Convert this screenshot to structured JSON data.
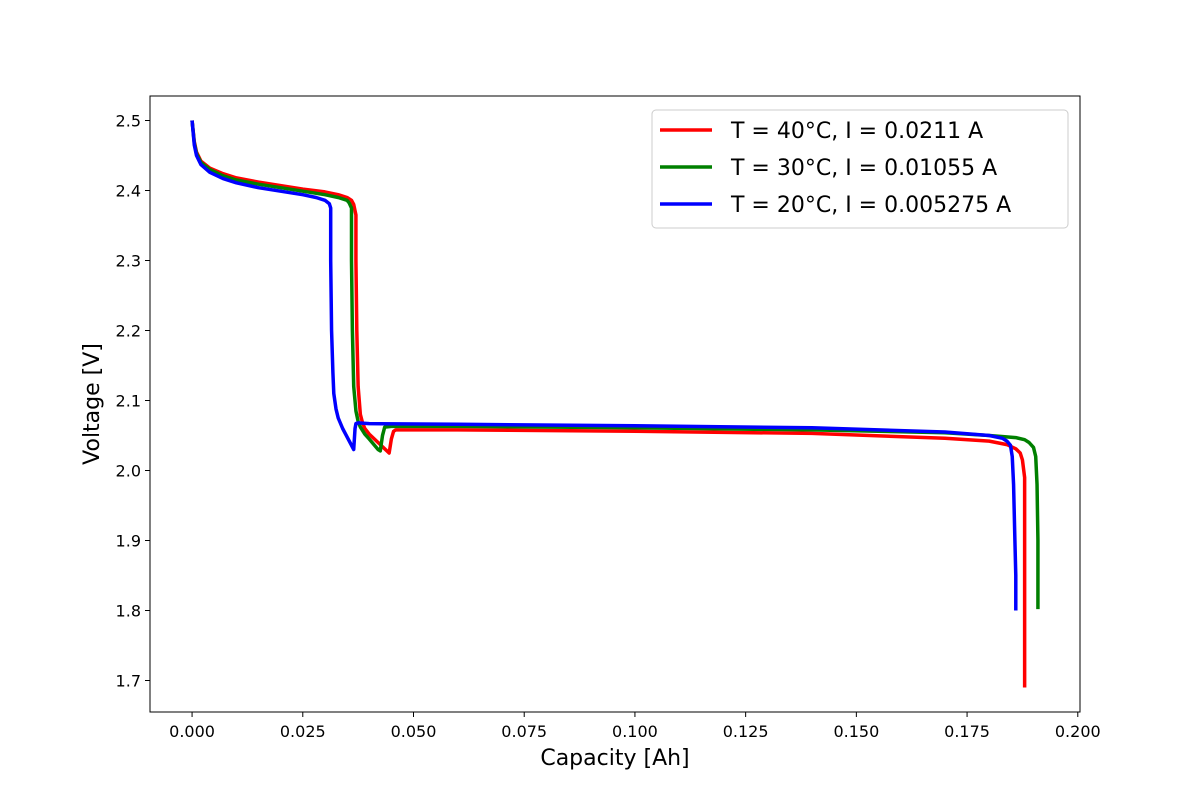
{
  "chart_data": {
    "type": "line",
    "title": "",
    "xlabel": "Capacity [Ah]",
    "ylabel": "Voltage [V]",
    "xlim": [
      -0.0095,
      0.2005
    ],
    "ylim": [
      1.655,
      2.535
    ],
    "xticks": [
      0.0,
      0.025,
      0.05,
      0.075,
      0.1,
      0.125,
      0.15,
      0.175,
      0.2
    ],
    "xtick_labels": [
      "0.000",
      "0.025",
      "0.050",
      "0.075",
      "0.100",
      "0.125",
      "0.150",
      "0.175",
      "0.200"
    ],
    "yticks": [
      1.7,
      1.8,
      1.9,
      2.0,
      2.1,
      2.2,
      2.3,
      2.4,
      2.5
    ],
    "ytick_labels": [
      "1.7",
      "1.8",
      "1.9",
      "2.0",
      "2.1",
      "2.2",
      "2.3",
      "2.4",
      "2.5"
    ],
    "grid": false,
    "legend_position": "upper-right",
    "series": [
      {
        "name": "T = 40$^\\circ$C, I = 0.0211 A",
        "label_display": "T = 40°C, I = 0.0211 A",
        "color": "#ff0000",
        "x": [
          0.0,
          0.0005,
          0.001,
          0.002,
          0.004,
          0.007,
          0.01,
          0.015,
          0.02,
          0.025,
          0.03,
          0.033,
          0.035,
          0.036,
          0.0365,
          0.037,
          0.037,
          0.0372,
          0.0375,
          0.038,
          0.0385,
          0.039,
          0.04,
          0.042,
          0.0445,
          0.045,
          0.0455,
          0.046,
          0.048,
          0.06,
          0.1,
          0.14,
          0.17,
          0.18,
          0.184,
          0.186,
          0.187,
          0.1875,
          0.188,
          0.188,
          0.188
        ],
        "y": [
          2.5,
          2.47,
          2.455,
          2.442,
          2.432,
          2.424,
          2.418,
          2.412,
          2.407,
          2.402,
          2.398,
          2.394,
          2.39,
          2.386,
          2.38,
          2.365,
          2.3,
          2.2,
          2.12,
          2.08,
          2.068,
          2.06,
          2.052,
          2.04,
          2.025,
          2.045,
          2.056,
          2.058,
          2.058,
          2.058,
          2.056,
          2.053,
          2.046,
          2.042,
          2.037,
          2.031,
          2.025,
          2.015,
          1.99,
          1.85,
          1.69
        ]
      },
      {
        "name": "T = 30$^\\circ$C, I = 0.01055 A",
        "label_display": "T = 30°C, I = 0.01055 A",
        "color": "#008000",
        "x": [
          0.0,
          0.0005,
          0.001,
          0.002,
          0.004,
          0.007,
          0.01,
          0.015,
          0.02,
          0.025,
          0.03,
          0.033,
          0.035,
          0.0355,
          0.036,
          0.036,
          0.0362,
          0.0365,
          0.037,
          0.0375,
          0.038,
          0.039,
          0.04,
          0.042,
          0.0425,
          0.043,
          0.0435,
          0.045,
          0.06,
          0.1,
          0.14,
          0.17,
          0.18,
          0.186,
          0.188,
          0.189,
          0.19,
          0.1905,
          0.1908,
          0.191,
          0.191
        ],
        "y": [
          2.5,
          2.468,
          2.453,
          2.44,
          2.43,
          2.421,
          2.415,
          2.409,
          2.404,
          2.399,
          2.394,
          2.39,
          2.386,
          2.382,
          2.375,
          2.3,
          2.2,
          2.12,
          2.085,
          2.07,
          2.062,
          2.052,
          2.045,
          2.03,
          2.028,
          2.05,
          2.062,
          2.063,
          2.063,
          2.061,
          2.058,
          2.054,
          2.05,
          2.047,
          2.044,
          2.04,
          2.033,
          2.02,
          1.98,
          1.9,
          1.802
        ]
      },
      {
        "name": "T = 20$^\\circ$C, I = 0.005275 A",
        "label_display": "T = 20°C, I = 0.005275 A",
        "color": "#0000ff",
        "x": [
          0.0,
          0.0005,
          0.001,
          0.002,
          0.004,
          0.007,
          0.01,
          0.015,
          0.02,
          0.025,
          0.028,
          0.03,
          0.031,
          0.0313,
          0.0313,
          0.0315,
          0.0318,
          0.032,
          0.0325,
          0.033,
          0.034,
          0.035,
          0.0365,
          0.0368,
          0.037,
          0.0375,
          0.04,
          0.06,
          0.1,
          0.14,
          0.17,
          0.18,
          0.183,
          0.184,
          0.1848,
          0.1852,
          0.1855,
          0.1858,
          0.186,
          0.186
        ],
        "y": [
          2.5,
          2.465,
          2.45,
          2.437,
          2.426,
          2.417,
          2.411,
          2.404,
          2.399,
          2.394,
          2.39,
          2.386,
          2.381,
          2.375,
          2.3,
          2.2,
          2.14,
          2.11,
          2.088,
          2.075,
          2.06,
          2.048,
          2.03,
          2.06,
          2.067,
          2.068,
          2.067,
          2.066,
          2.064,
          2.061,
          2.055,
          2.05,
          2.046,
          2.042,
          2.036,
          2.02,
          1.98,
          1.9,
          1.85,
          1.8
        ]
      }
    ]
  }
}
